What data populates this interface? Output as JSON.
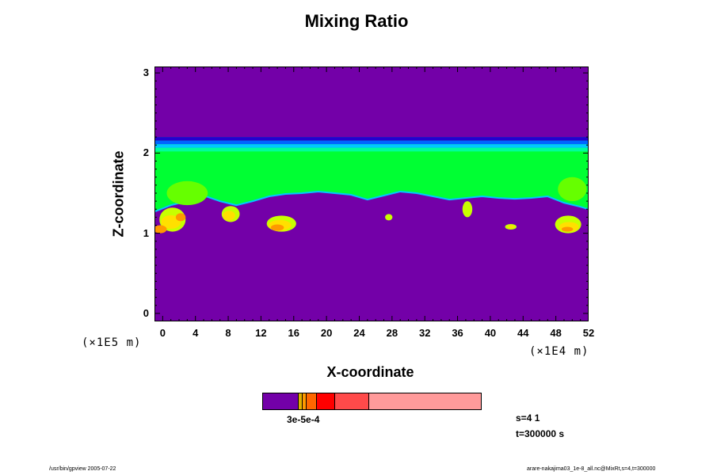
{
  "chart_data": {
    "type": "heatmap",
    "title": "Mixing Ratio",
    "xlabel": "X-coordinate",
    "ylabel": "Z-coordinate",
    "x_scale_label": "(×1E4 m)",
    "y_scale_label": "(×1E5 m)",
    "xlim": [
      -1,
      52
    ],
    "ylim": [
      -0.1,
      3.08
    ],
    "x_ticks": [
      "0",
      "4",
      "8",
      "12",
      "16",
      "20",
      "24",
      "28",
      "32",
      "36",
      "40",
      "44",
      "48",
      "52"
    ],
    "y_ticks": [
      "0",
      "1",
      "2",
      "3"
    ],
    "background_value_color": "#7300a8",
    "layer": {
      "z_top": 2.2,
      "upper_band_colors": [
        "#2400d0",
        "#0066ff",
        "#00c8ff",
        "#00ff9a"
      ],
      "fill_color": "#00ff33",
      "base_profile": [
        [
          -1,
          1.27
        ],
        [
          1,
          1.35
        ],
        [
          3,
          1.4
        ],
        [
          5,
          1.47
        ],
        [
          7,
          1.4
        ],
        [
          9,
          1.35
        ],
        [
          11,
          1.4
        ],
        [
          13,
          1.46
        ],
        [
          15,
          1.49
        ],
        [
          17,
          1.5
        ],
        [
          19,
          1.52
        ],
        [
          21,
          1.5
        ],
        [
          23,
          1.48
        ],
        [
          25,
          1.42
        ],
        [
          27,
          1.47
        ],
        [
          29,
          1.52
        ],
        [
          31,
          1.5
        ],
        [
          33,
          1.46
        ],
        [
          35,
          1.42
        ],
        [
          37,
          1.44
        ],
        [
          39,
          1.46
        ],
        [
          41,
          1.44
        ],
        [
          43,
          1.43
        ],
        [
          45,
          1.44
        ],
        [
          47,
          1.46
        ],
        [
          49,
          1.38
        ],
        [
          51,
          1.33
        ],
        [
          52,
          1.3
        ]
      ],
      "cells": [
        {
          "x": 1.2,
          "z": 1.17,
          "w": 3.2,
          "h": 0.3,
          "color": "#c8ff00"
        },
        {
          "x": 1.0,
          "z": 1.14,
          "w": 2.4,
          "h": 0.17,
          "color": "#ffe000"
        },
        {
          "x": -0.3,
          "z": 1.05,
          "w": 1.6,
          "h": 0.1,
          "color": "#ff9900"
        },
        {
          "x": 2.2,
          "z": 1.2,
          "w": 1.2,
          "h": 0.1,
          "color": "#ff9900"
        },
        {
          "x": 8.3,
          "z": 1.24,
          "w": 2.2,
          "h": 0.2,
          "color": "#c8ff00"
        },
        {
          "x": 8.1,
          "z": 1.22,
          "w": 1.5,
          "h": 0.12,
          "color": "#ffe000"
        },
        {
          "x": 14.5,
          "z": 1.12,
          "w": 3.6,
          "h": 0.2,
          "color": "#c8ff00"
        },
        {
          "x": 14.3,
          "z": 1.1,
          "w": 2.8,
          "h": 0.13,
          "color": "#ffe000"
        },
        {
          "x": 14.0,
          "z": 1.07,
          "w": 1.6,
          "h": 0.08,
          "color": "#ff9900"
        },
        {
          "x": 27.6,
          "z": 1.2,
          "w": 0.9,
          "h": 0.08,
          "color": "#c8ff00"
        },
        {
          "x": 37.2,
          "z": 1.3,
          "w": 1.2,
          "h": 0.2,
          "color": "#c8ff00"
        },
        {
          "x": 42.5,
          "z": 1.08,
          "w": 1.4,
          "h": 0.07,
          "color": "#c8ff00"
        },
        {
          "x": 42.5,
          "z": 1.08,
          "w": 0.8,
          "h": 0.04,
          "color": "#ffe000"
        },
        {
          "x": 49.5,
          "z": 1.11,
          "w": 3.2,
          "h": 0.22,
          "color": "#c8ff00"
        },
        {
          "x": 49.6,
          "z": 1.08,
          "w": 2.4,
          "h": 0.12,
          "color": "#ffe000"
        },
        {
          "x": 49.4,
          "z": 1.05,
          "w": 1.4,
          "h": 0.06,
          "color": "#ff9900"
        },
        {
          "x": 3.0,
          "z": 1.5,
          "w": 5.0,
          "h": 0.3,
          "color": "#66ff00"
        },
        {
          "x": 50.0,
          "z": 1.55,
          "w": 3.5,
          "h": 0.3,
          "color": "#66ff00"
        }
      ]
    },
    "colorbar": {
      "colors": [
        "#7300a8",
        "#e0b000",
        "#ff9900",
        "#ff6600",
        "#ff0000",
        "#ff4a4a",
        "#ff9a9a"
      ],
      "fractions": [
        0.17,
        0.02,
        0.02,
        0.05,
        0.085,
        0.165,
        0.54
      ],
      "label": "3e-5e-4"
    }
  },
  "info": {
    "s_line": "s=4 1",
    "t_line": "t=300000 s"
  },
  "footer": {
    "left": "/usr/bin/gpview 2005-07-22",
    "right": "arare-nakajima03_1e-8_all.nc@MixRt,s=4,t=300000"
  }
}
